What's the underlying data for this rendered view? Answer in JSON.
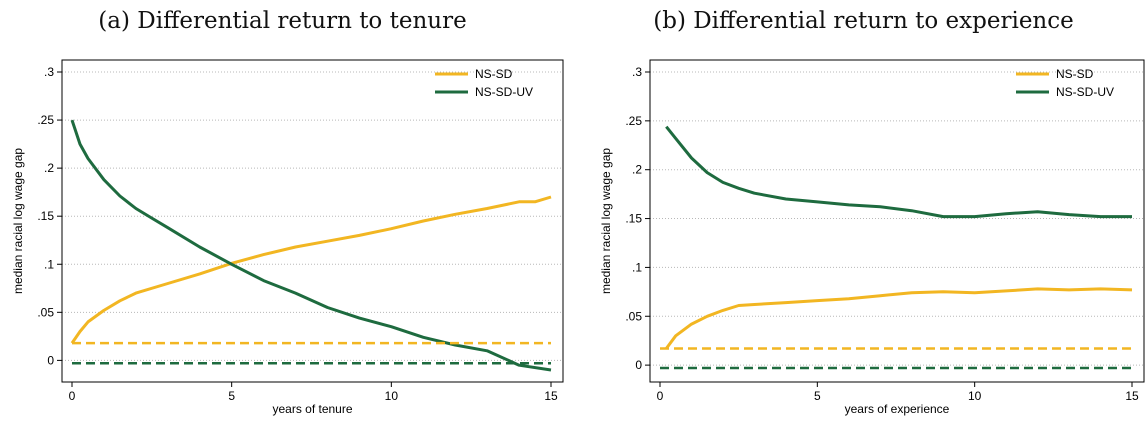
{
  "chart_data": [
    {
      "type": "line",
      "title": "(a) Differential return to tenure",
      "xlabel": "years of tenure",
      "ylabel": "median racial log wage gap",
      "xlim": [
        0,
        15
      ],
      "ylim": [
        -0.01,
        0.3
      ],
      "xticks": [
        0,
        5,
        10,
        15
      ],
      "xtick_labels": [
        "0",
        "5",
        "10",
        "15"
      ],
      "yticks": [
        0,
        0.05,
        0.1,
        0.15,
        0.2,
        0.25,
        0.3
      ],
      "ytick_labels": [
        "0",
        ".05",
        ".1",
        ".15",
        ".2",
        ".25",
        ".3"
      ],
      "grid": "horizontal dotted",
      "legend_position": "top-right",
      "series": [
        {
          "name": "NS-SD",
          "color": "#f2b622",
          "style": "solid",
          "x": [
            0,
            0.25,
            0.5,
            1,
            1.5,
            2,
            3,
            4,
            5,
            6,
            7,
            8,
            9,
            10,
            11,
            12,
            13,
            14,
            14.5,
            15
          ],
          "y": [
            0.018,
            0.03,
            0.04,
            0.052,
            0.062,
            0.07,
            0.08,
            0.09,
            0.101,
            0.11,
            0.118,
            0.124,
            0.13,
            0.137,
            0.145,
            0.152,
            0.158,
            0.165,
            0.165,
            0.17
          ]
        },
        {
          "name": "NS-SD-UV",
          "color": "#1e6b3f",
          "style": "solid",
          "x": [
            0,
            0.25,
            0.5,
            1,
            1.5,
            2,
            2.5,
            3,
            4,
            5,
            6,
            7,
            8,
            9,
            10,
            11,
            12,
            13,
            14,
            15
          ],
          "y": [
            0.25,
            0.225,
            0.21,
            0.188,
            0.171,
            0.158,
            0.148,
            0.138,
            0.118,
            0.1,
            0.083,
            0.07,
            0.055,
            0.044,
            0.035,
            0.024,
            0.016,
            0.01,
            -0.005,
            -0.01
          ]
        },
        {
          "name": "",
          "color": "#f2b622",
          "style": "dashed",
          "x": [
            0,
            15
          ],
          "y": [
            0.018,
            0.018
          ]
        },
        {
          "name": "",
          "color": "#1e6b3f",
          "style": "dashed",
          "x": [
            0,
            15
          ],
          "y": [
            -0.003,
            -0.003
          ]
        }
      ]
    },
    {
      "type": "line",
      "title": "(b) Differential return to experience",
      "xlabel": "years of experience",
      "ylabel": "median racial log wage gap",
      "xlim": [
        0,
        15
      ],
      "ylim": [
        -0.005,
        0.3
      ],
      "xticks": [
        0,
        5,
        10,
        15
      ],
      "xtick_labels": [
        "0",
        "5",
        "10",
        "15"
      ],
      "yticks": [
        0,
        0.05,
        0.1,
        0.15,
        0.2,
        0.25,
        0.3
      ],
      "ytick_labels": [
        "0",
        ".05",
        ".1",
        ".15",
        ".2",
        ".25",
        ".3"
      ],
      "grid": "horizontal dotted",
      "legend_position": "top-right",
      "series": [
        {
          "name": "NS-SD",
          "color": "#f2b622",
          "style": "solid",
          "x": [
            0.2,
            0.5,
            1,
            1.5,
            2,
            2.5,
            3,
            4,
            5,
            6,
            7,
            8,
            9,
            10,
            11,
            12,
            13,
            14,
            15
          ],
          "y": [
            0.017,
            0.03,
            0.042,
            0.05,
            0.056,
            0.061,
            0.062,
            0.064,
            0.066,
            0.068,
            0.071,
            0.074,
            0.075,
            0.074,
            0.076,
            0.078,
            0.077,
            0.078,
            0.077
          ]
        },
        {
          "name": "NS-SD-UV",
          "color": "#1e6b3f",
          "style": "solid",
          "x": [
            0.2,
            0.5,
            1,
            1.5,
            2,
            2.5,
            3,
            4,
            5,
            6,
            7,
            8,
            9,
            10,
            11,
            12,
            13,
            14,
            15
          ],
          "y": [
            0.244,
            0.232,
            0.212,
            0.197,
            0.187,
            0.181,
            0.176,
            0.17,
            0.167,
            0.164,
            0.162,
            0.158,
            0.152,
            0.152,
            0.155,
            0.157,
            0.154,
            0.152,
            0.152
          ]
        },
        {
          "name": "",
          "color": "#f2b622",
          "style": "dashed",
          "x": [
            0,
            15
          ],
          "y": [
            0.017,
            0.017
          ]
        },
        {
          "name": "",
          "color": "#1e6b3f",
          "style": "dashed",
          "x": [
            0,
            15
          ],
          "y": [
            -0.003,
            -0.003
          ]
        }
      ]
    }
  ]
}
